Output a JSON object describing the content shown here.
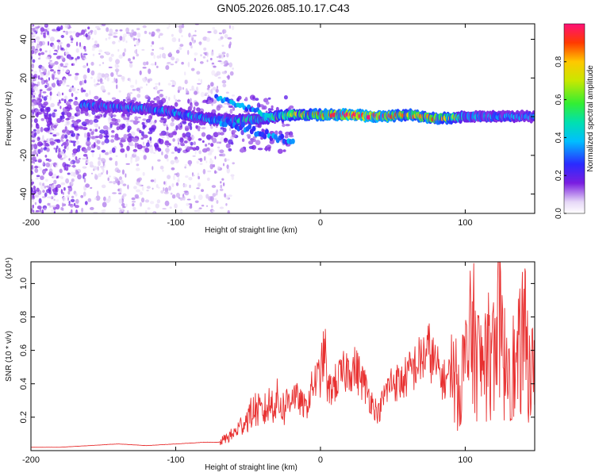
{
  "figure_title": "GN05.2026.085.10.17.C43",
  "colors": {
    "snr_line": "#e83030",
    "frame": "#000000"
  },
  "chart_data": [
    {
      "type": "heatmap",
      "title": "GN05.2026.085.10.17.C43",
      "xlabel": "Height of straight line (km)",
      "ylabel": "Frequency (Hz)",
      "xlim": [
        -200,
        148
      ],
      "ylim": [
        -50,
        48
      ],
      "xticks": [
        -200,
        -100,
        0,
        100
      ],
      "yticks": [
        -40,
        -20,
        0,
        20,
        40
      ],
      "colorbar": {
        "label": "Normalized spectral amplitude",
        "range": [
          0,
          1
        ],
        "ticks": [
          0.0,
          0.2,
          0.4,
          0.6,
          0.8
        ],
        "colormap": "rainbow"
      },
      "ridge": {
        "description": "dominant frequency band vs height",
        "x": [
          -165,
          -140,
          -120,
          -100,
          -80,
          -60,
          -40,
          -20,
          0,
          20,
          40,
          60,
          80,
          100,
          120,
          148
        ],
        "frequency_hz": [
          6,
          5,
          4,
          2,
          -1,
          -2,
          -1,
          1,
          1,
          1,
          0,
          1,
          -1,
          0,
          0,
          0
        ],
        "amplitude": [
          0.35,
          0.35,
          0.4,
          0.4,
          0.4,
          0.45,
          0.5,
          0.75,
          0.9,
          1.0,
          1.0,
          0.85,
          0.9,
          0.5,
          0.4,
          0.35
        ]
      }
    },
    {
      "type": "line",
      "xlabel": "Height of straight line (km)",
      "ylabel": "SNR (10 * v/v)",
      "y_multiplier_label": "(x10⁴)",
      "xlim": [
        -200,
        148
      ],
      "ylim": [
        0,
        1.13
      ],
      "xticks": [
        -200,
        -100,
        0,
        100
      ],
      "yticks": [
        0.2,
        0.4,
        0.6,
        0.8,
        1.0
      ],
      "series": [
        {
          "name": "SNR",
          "x": [
            -200,
            -180,
            -160,
            -140,
            -120,
            -100,
            -80,
            -70,
            -60,
            -55,
            -50,
            -45,
            -40,
            -35,
            -30,
            -25,
            -20,
            -15,
            -10,
            -5,
            0,
            3,
            5,
            8,
            10,
            15,
            20,
            25,
            30,
            35,
            40,
            45,
            50,
            55,
            60,
            65,
            70,
            75,
            80,
            85,
            90,
            95,
            100,
            105,
            110,
            115,
            120,
            123,
            126,
            130,
            135,
            140,
            145,
            148
          ],
          "values": [
            0.02,
            0.02,
            0.03,
            0.04,
            0.03,
            0.04,
            0.05,
            0.05,
            0.1,
            0.15,
            0.2,
            0.25,
            0.22,
            0.28,
            0.3,
            0.25,
            0.35,
            0.3,
            0.25,
            0.4,
            0.45,
            0.62,
            0.35,
            0.38,
            0.4,
            0.45,
            0.5,
            0.48,
            0.4,
            0.3,
            0.22,
            0.35,
            0.42,
            0.4,
            0.45,
            0.5,
            0.55,
            0.6,
            0.5,
            0.42,
            0.45,
            0.38,
            0.5,
            0.7,
            0.5,
            0.55,
            0.6,
            1.1,
            0.5,
            0.6,
            0.45,
            0.7,
            0.5,
            0.4
          ]
        }
      ]
    }
  ]
}
